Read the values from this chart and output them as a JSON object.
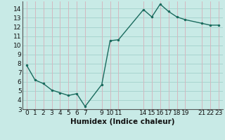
{
  "x": [
    0,
    1,
    2,
    3,
    4,
    5,
    6,
    7,
    9,
    10,
    11,
    14,
    15,
    16,
    17,
    18,
    19,
    21,
    22,
    23
  ],
  "y": [
    7.8,
    6.2,
    5.8,
    5.1,
    4.8,
    4.5,
    4.7,
    3.3,
    5.7,
    10.5,
    10.6,
    13.9,
    13.1,
    14.5,
    13.7,
    13.1,
    12.8,
    12.4,
    12.2,
    12.2
  ],
  "line_color": "#1a6b5e",
  "marker": ".",
  "marker_size": 3,
  "bg_color": "#c8eae6",
  "grid_h_color": "#a8d4cf",
  "grid_v_color": "#d4b8c0",
  "xlabel": "Humidex (Indice chaleur)",
  "xlim": [
    -0.5,
    23.5
  ],
  "ylim": [
    3,
    14.8
  ],
  "xticks": [
    0,
    1,
    2,
    3,
    4,
    5,
    6,
    7,
    9,
    10,
    11,
    14,
    15,
    16,
    17,
    18,
    19,
    21,
    22,
    23
  ],
  "yticks": [
    3,
    4,
    5,
    6,
    7,
    8,
    9,
    10,
    11,
    12,
    13,
    14
  ],
  "tick_fontsize": 6.5,
  "label_fontsize": 7.5
}
